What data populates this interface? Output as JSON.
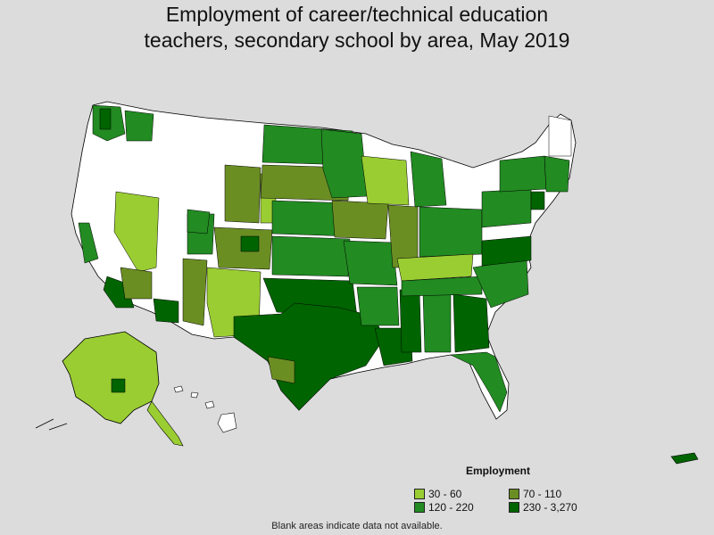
{
  "title_lines": [
    "Employment of career/technical education",
    "teachers, secondary school by area, May 2019"
  ],
  "legend": {
    "title": "Employment",
    "items": [
      {
        "label": "30 - 60",
        "color": "#9acd32"
      },
      {
        "label": "120 - 220",
        "color": "#228b22"
      },
      {
        "label": "70 - 110",
        "color": "#6b8e23"
      },
      {
        "label": "230 - 3,270",
        "color": "#006400"
      }
    ]
  },
  "footnote": "Blank areas indicate data not available.",
  "colors": {
    "background": "#dcdcdc",
    "no_data": "#ffffff",
    "border": "#000000"
  }
}
